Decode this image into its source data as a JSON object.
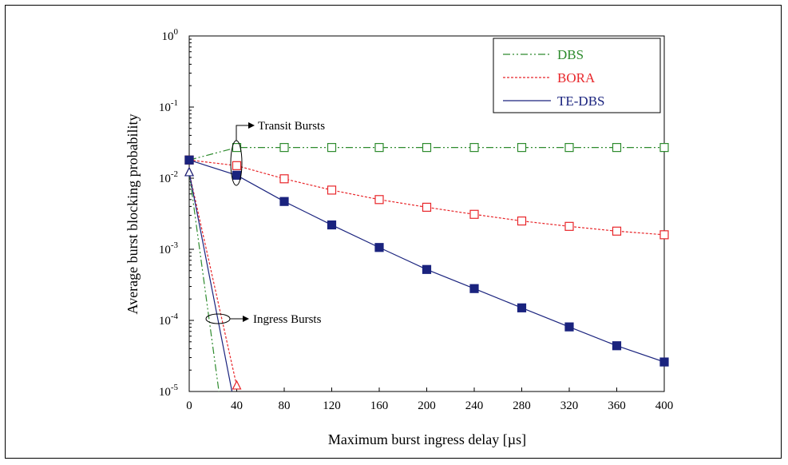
{
  "chart_data": {
    "type": "line",
    "xlabel": "Maximum burst ingress delay [µs]",
    "ylabel": "Average burst blocking probability",
    "x_ticks": [
      0,
      40,
      80,
      120,
      160,
      200,
      240,
      280,
      320,
      360,
      400
    ],
    "xlim": [
      0,
      400
    ],
    "y_scale": "log",
    "ylim": [
      1e-05,
      1
    ],
    "y_ticks": [
      {
        "value": 1e-05,
        "base": "10",
        "exp": "-5"
      },
      {
        "value": 0.0001,
        "base": "10",
        "exp": "-4"
      },
      {
        "value": 0.001,
        "base": "10",
        "exp": "-3"
      },
      {
        "value": 0.01,
        "base": "10",
        "exp": "-2"
      },
      {
        "value": 0.1,
        "base": "10",
        "exp": "-1"
      },
      {
        "value": 1,
        "base": "10",
        "exp": "0"
      }
    ],
    "grid": false,
    "legend_position": "top-right",
    "series": [
      {
        "name": "DBS",
        "group": "transit",
        "color": "#2e8b2e",
        "dash": "dash-dot-dot",
        "marker": "open-square",
        "x": [
          0,
          40,
          80,
          120,
          160,
          200,
          240,
          280,
          320,
          360,
          400
        ],
        "y": [
          0.018,
          0.027,
          0.027,
          0.027,
          0.027,
          0.027,
          0.027,
          0.027,
          0.027,
          0.027,
          0.027
        ]
      },
      {
        "name": "BORA",
        "group": "transit",
        "color": "#e8262a",
        "dash": "dotted",
        "marker": "open-square",
        "x": [
          0,
          40,
          80,
          120,
          160,
          200,
          240,
          280,
          320,
          360,
          400
        ],
        "y": [
          0.018,
          0.015,
          0.0098,
          0.0068,
          0.005,
          0.0039,
          0.0031,
          0.0025,
          0.0021,
          0.0018,
          0.0016
        ]
      },
      {
        "name": "TE-DBS",
        "group": "transit",
        "color": "#1a237e",
        "dash": "solid",
        "marker": "filled-square",
        "x": [
          0,
          40,
          80,
          120,
          160,
          200,
          240,
          280,
          320,
          360,
          400
        ],
        "y": [
          0.018,
          0.011,
          0.0047,
          0.0022,
          0.00106,
          0.00052,
          0.00028,
          0.00015,
          8.1e-05,
          4.4e-05,
          2.6e-05
        ]
      },
      {
        "name": "DBS",
        "group": "ingress",
        "color": "#2e8b2e",
        "dash": "dash-dot-dot",
        "marker": "open-triangle",
        "x": [
          0,
          25
        ],
        "y": [
          0.012,
          1e-05
        ]
      },
      {
        "name": "BORA",
        "group": "ingress",
        "color": "#e8262a",
        "dash": "dotted",
        "marker": "open-triangle",
        "x": [
          0,
          40
        ],
        "y": [
          0.012,
          1.2e-05
        ]
      },
      {
        "name": "TE-DBS",
        "group": "ingress",
        "color": "#1a237e",
        "dash": "solid",
        "marker": "open-triangle",
        "x": [
          0,
          36
        ],
        "y": [
          0.012,
          1e-05
        ]
      }
    ],
    "annotations": [
      {
        "text": "Transit Bursts",
        "x": 40,
        "y": 0.017
      },
      {
        "text": "Ingress Bursts",
        "x": 25,
        "y": 0.00015
      }
    ]
  }
}
